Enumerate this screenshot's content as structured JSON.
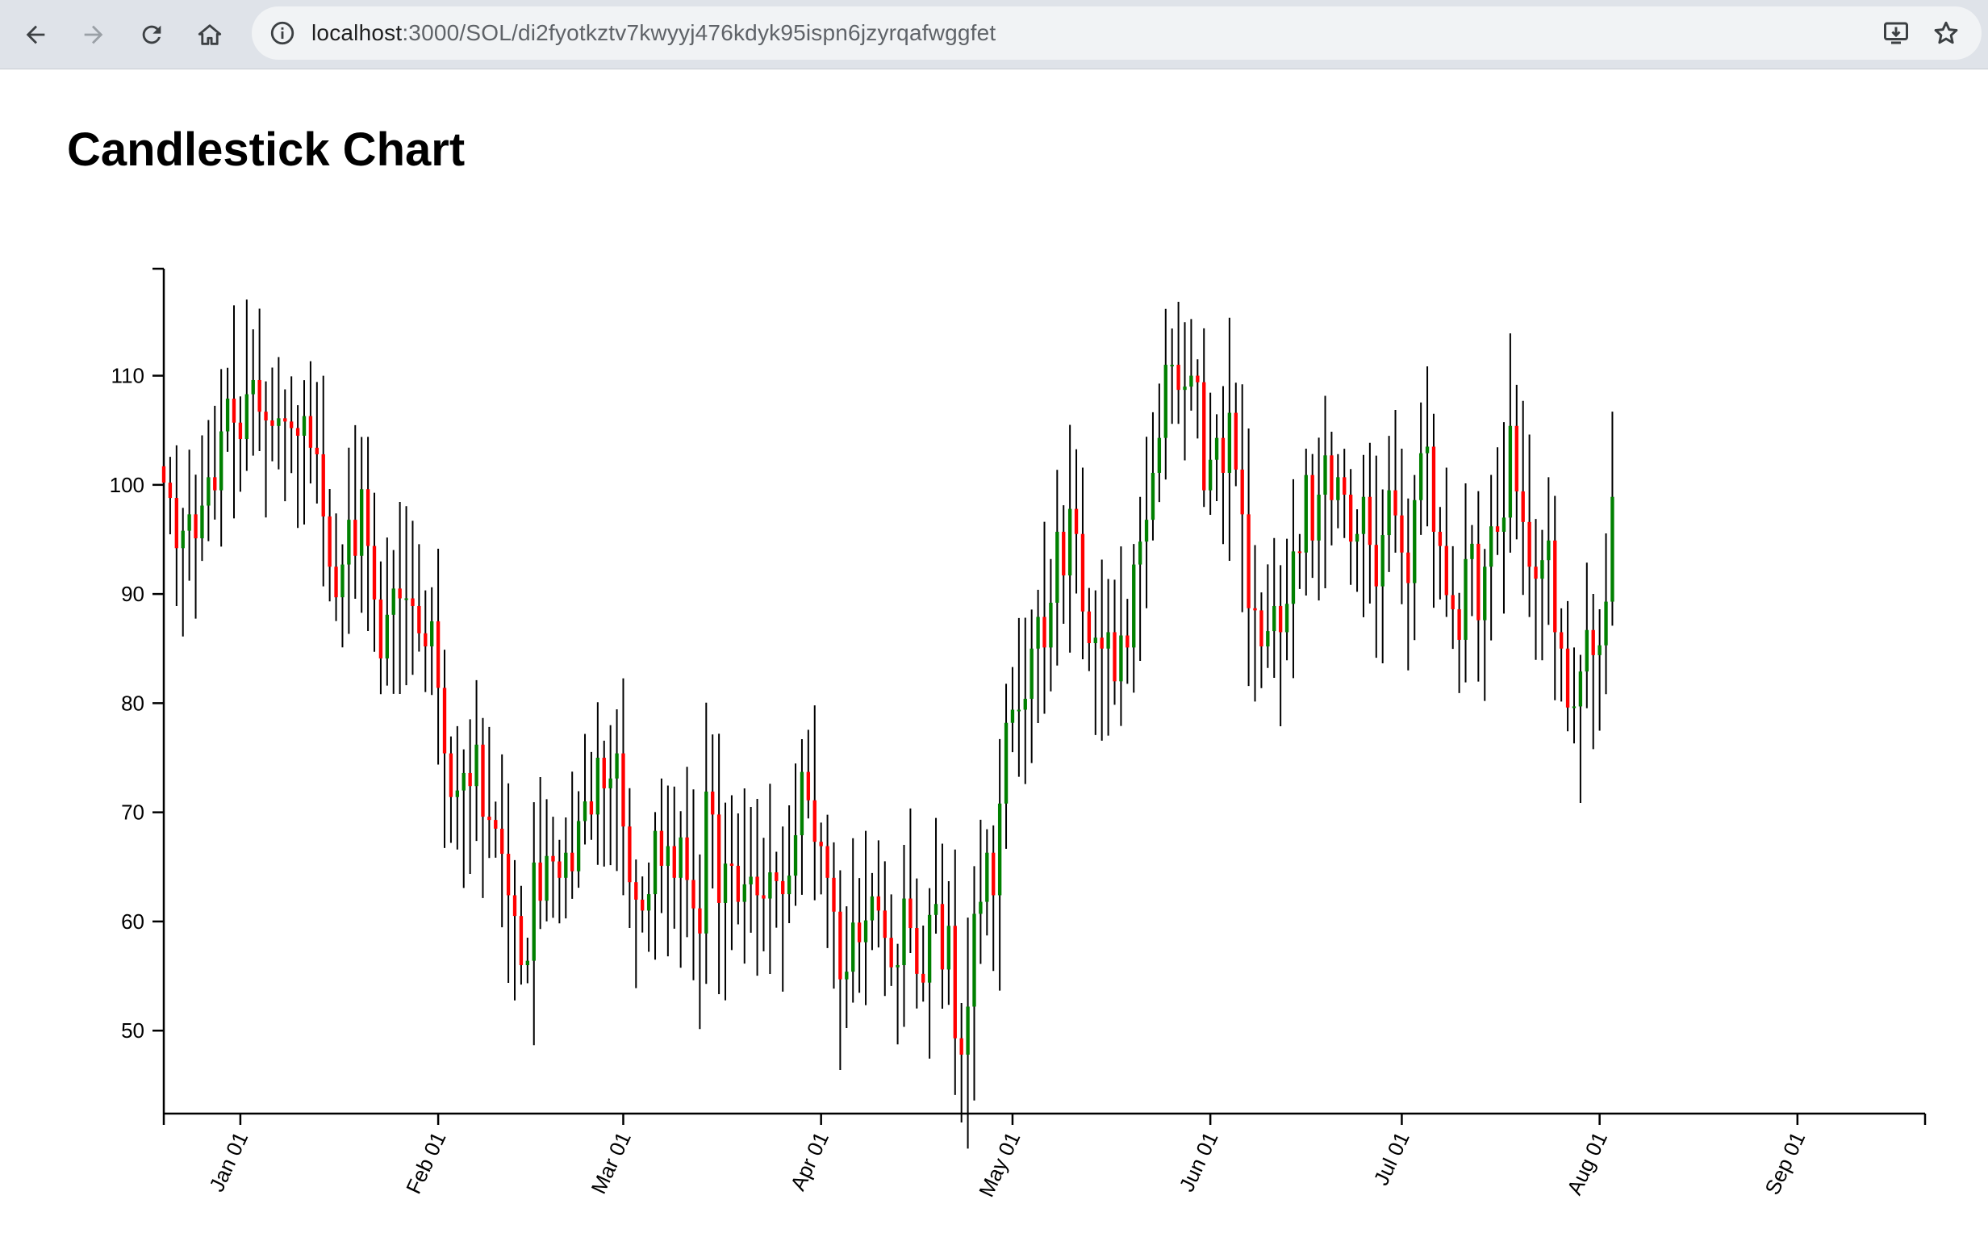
{
  "browser": {
    "url_host": "localhost",
    "url_path": ":3000/SOL/di2fyotkztv7kwyyj476kdyk95ispn6jzyrqafwggfet",
    "icons": [
      "back-arrow-icon",
      "forward-arrow-icon",
      "reload-icon",
      "home-icon",
      "site-info-icon",
      "install-app-icon",
      "bookmark-star-icon"
    ]
  },
  "page": {
    "title": "Candlestick Chart"
  },
  "chart_data": {
    "type": "candlestick",
    "title": "",
    "xlabel": "",
    "ylabel": "",
    "x_ticks": [
      "Jan 01",
      "Feb 01",
      "Mar 01",
      "Apr 01",
      "May 01",
      "Jun 01",
      "Jul 01",
      "Aug 01",
      "Sep 01"
    ],
    "y_ticks": [
      50,
      60,
      70,
      80,
      90,
      100,
      110
    ],
    "y_range": [
      42.4,
      119.8
    ],
    "x_range_dates": [
      "2019-12-20",
      "2020-09-21"
    ],
    "grid": false,
    "colors": {
      "up": "#008000",
      "down": "#ff0000",
      "wick": "#000000",
      "axis": "#000000"
    },
    "start_date": "2019-12-20",
    "close": [
      100.2,
      98.8,
      94.2,
      95.8,
      97.3,
      95.1,
      98.1,
      100.7,
      99.5,
      104.9,
      107.9,
      105.7,
      104.2,
      108.3,
      109.6,
      106.7,
      105.9,
      105.4,
      106.1,
      105.8,
      105.2,
      104.5,
      106.3,
      103.4,
      102.8,
      97.1,
      92.5,
      89.7,
      92.7,
      96.8,
      93.5,
      99.6,
      94.4,
      89.5,
      84.1,
      88.1,
      90.5,
      89.6,
      89.6,
      88.9,
      86.4,
      85.2,
      87.5,
      81.4,
      75.4,
      71.4,
      72.0,
      73.6,
      72.4,
      76.2,
      69.6,
      69.3,
      68.5,
      66.2,
      62.4,
      60.5,
      56.0,
      56.4,
      65.4,
      61.9,
      66.0,
      65.5,
      64.0,
      66.3,
      64.6,
      69.2,
      71.0,
      69.8,
      75.0,
      72.2,
      73.1,
      75.4,
      68.7,
      63.6,
      62.0,
      61.0,
      62.5,
      68.3,
      65.1,
      66.9,
      64.0,
      67.7,
      63.8,
      61.2,
      58.9,
      71.9,
      69.8,
      61.7,
      65.3,
      65.1,
      61.8,
      63.4,
      64.1,
      62.4,
      62.1,
      64.5,
      63.7,
      62.5,
      64.2,
      67.9,
      73.7,
      71.1,
      67.3,
      66.9,
      64.0,
      60.9,
      54.7,
      55.4,
      59.9,
      58.1,
      60.1,
      62.3,
      61.0,
      58.5,
      55.8,
      56.0,
      62.1,
      59.4,
      55.2,
      54.4,
      60.6,
      61.6,
      55.6,
      59.6,
      49.3,
      47.8,
      52.2,
      60.7,
      61.8,
      66.3,
      62.4,
      70.8,
      78.2,
      79.4,
      79.4,
      80.4,
      85.0,
      87.9,
      85.1,
      89.2,
      95.7,
      91.7,
      97.8,
      95.5,
      88.4,
      85.5,
      86.0,
      85.0,
      86.5,
      82.0,
      86.2,
      85.1,
      92.7,
      94.8,
      96.8,
      101.1,
      104.3,
      111.0,
      111.0,
      108.7,
      109.0,
      110.0,
      109.4,
      99.5,
      102.3,
      104.3,
      101.1,
      106.6,
      101.4,
      97.3,
      88.7,
      88.5,
      85.2,
      86.6,
      88.9,
      86.5,
      89.1,
      93.9,
      93.8,
      100.9,
      94.9,
      99.1,
      102.7,
      98.6,
      100.7,
      99.1,
      94.8,
      95.5,
      98.9,
      94.5,
      90.7,
      95.4,
      99.5,
      97.2,
      93.8,
      91.0,
      98.6,
      102.9,
      103.5,
      95.7,
      94.4,
      89.9,
      88.6,
      85.8,
      93.2,
      94.6,
      87.6,
      92.5,
      96.2,
      95.7,
      97.0,
      105.4,
      99.4,
      96.6,
      92.5,
      91.4,
      93.1,
      94.9,
      86.5,
      85.0,
      79.6,
      79.7,
      82.9,
      86.7,
      84.4,
      85.3,
      89.3,
      98.9
    ],
    "volatility_note_removed": true
  }
}
